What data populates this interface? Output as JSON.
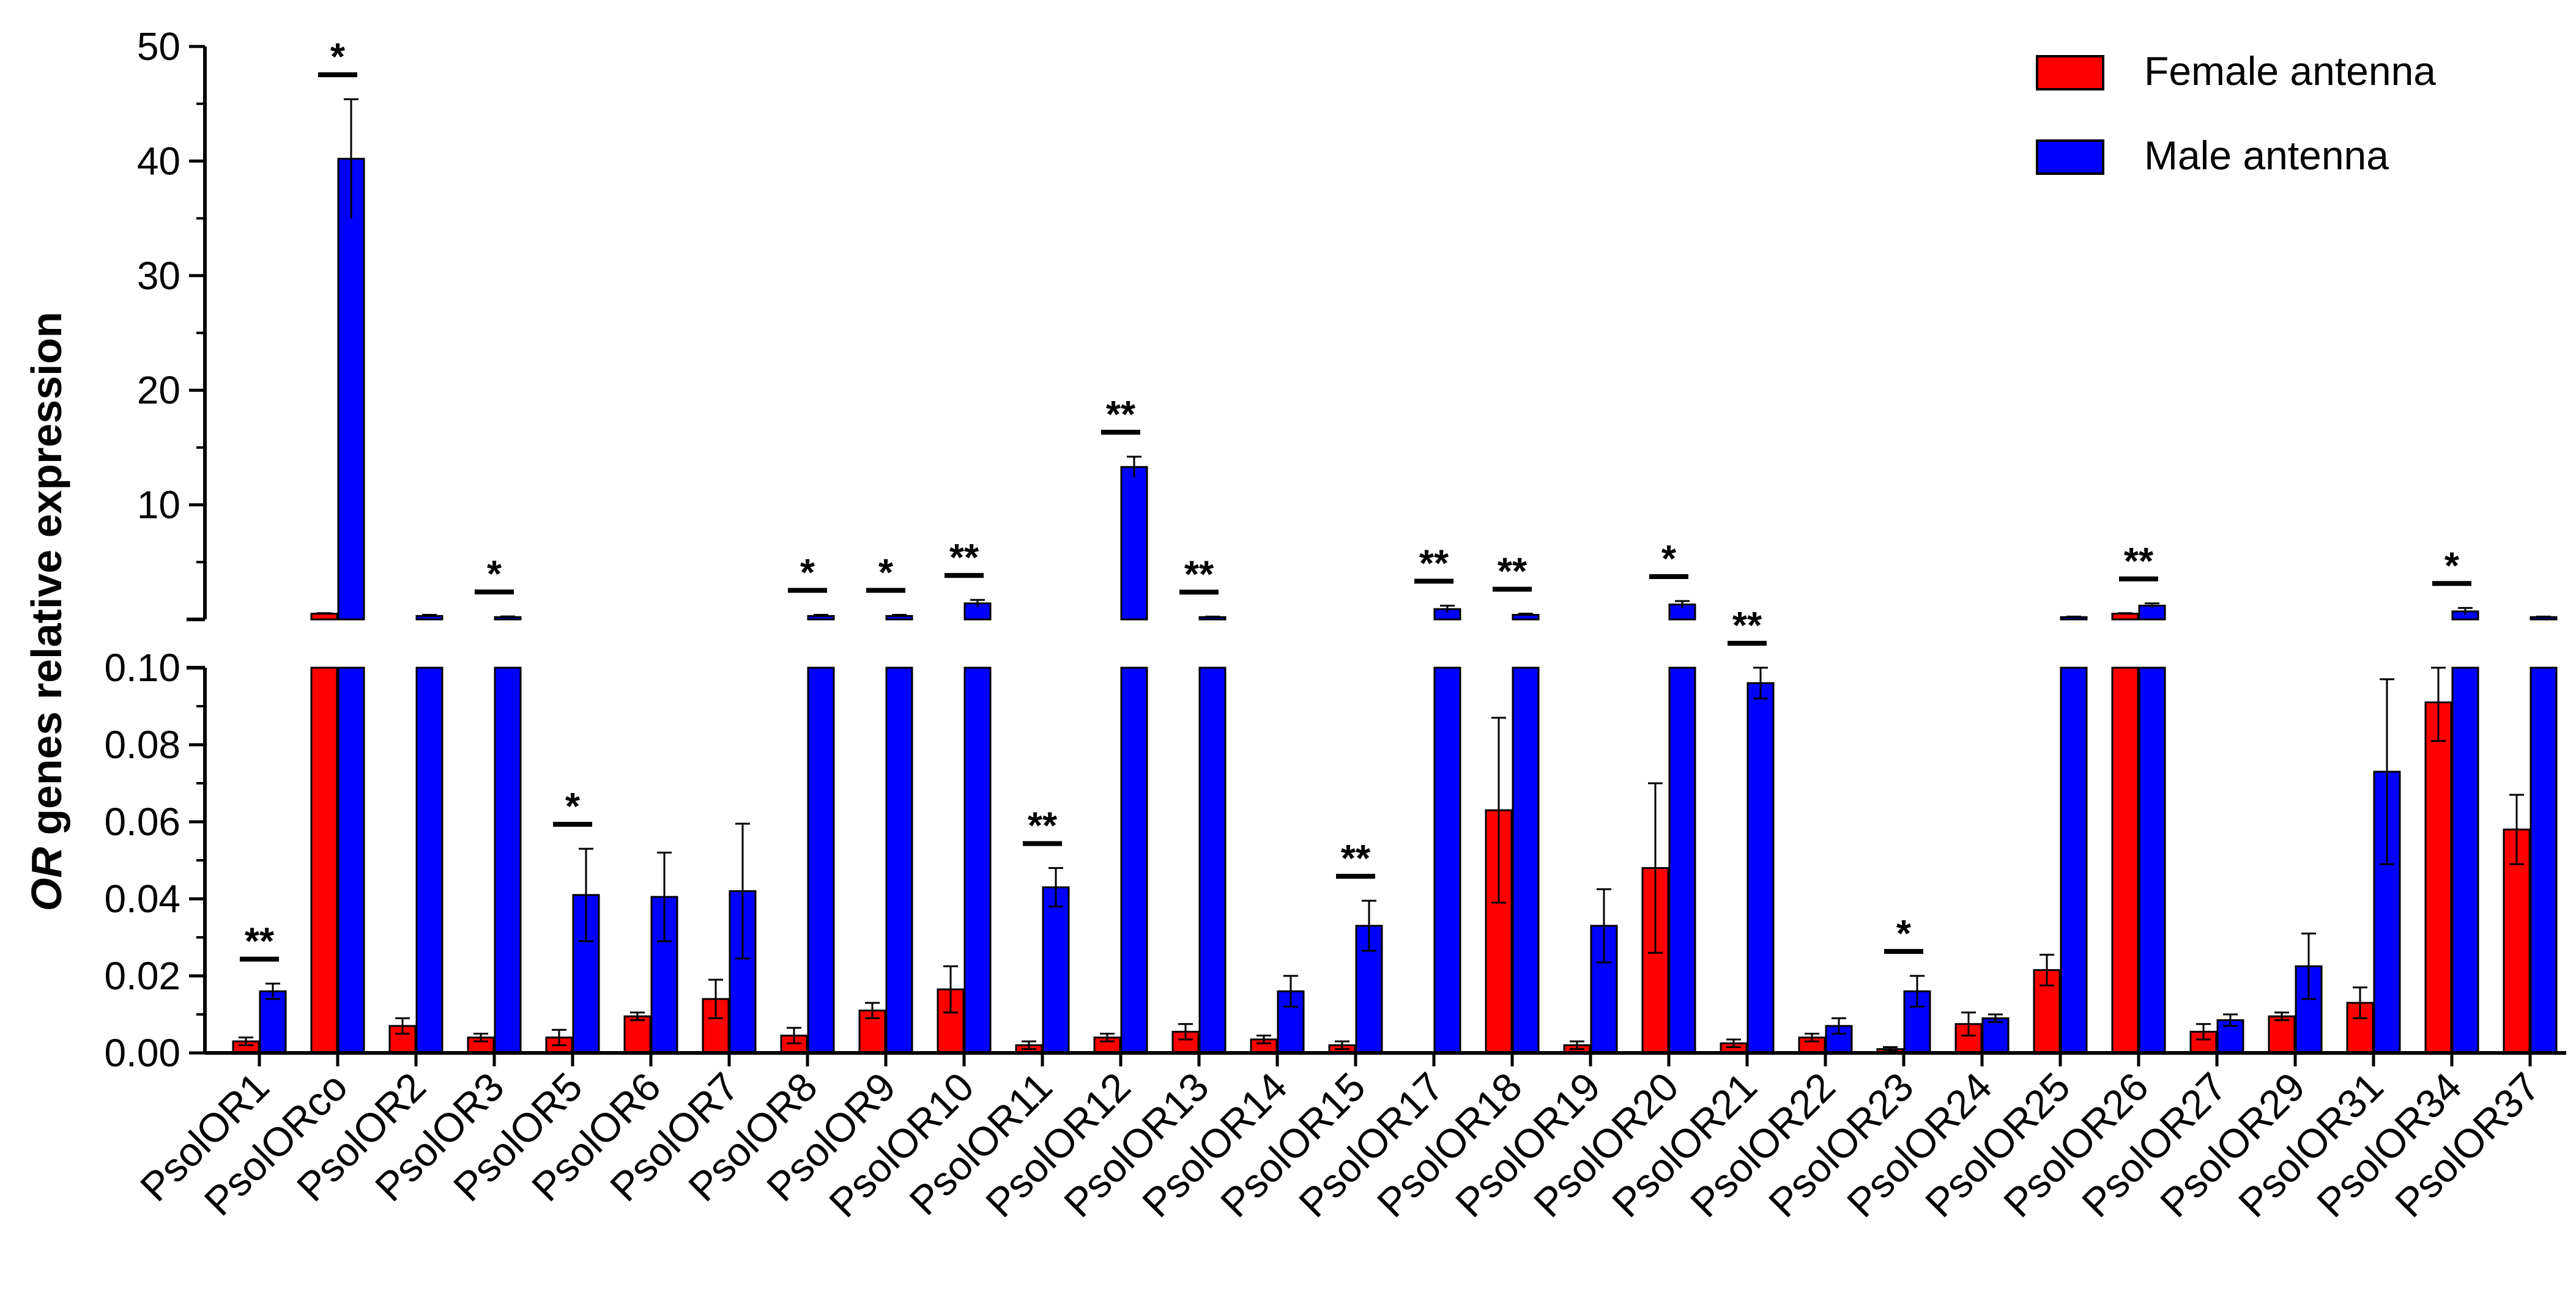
{
  "chart_data": {
    "type": "bar",
    "ylabel_emphasis": "OR",
    "ylabel_rest": " genes relative expression",
    "axis_break": true,
    "ylim_lower": [
      0,
      0.1
    ],
    "ylim_upper": [
      0,
      50
    ],
    "yticks_lower": [
      "0.00",
      "0.02",
      "0.04",
      "0.06",
      "0.08",
      "0.10"
    ],
    "yticks_upper": [
      "10",
      "20",
      "30",
      "40",
      "50"
    ],
    "legend_position": "top-right",
    "categories": [
      "PsolOR1",
      "PsolORco",
      "PsolOR2",
      "PsolOR3",
      "PsolOR5",
      "PsolOR6",
      "PsolOR7",
      "PsolOR8",
      "PsolOR9",
      "PsolOR10",
      "PsolOR11",
      "PsolOR12",
      "PsolOR13",
      "PsolOR14",
      "PsolOR15",
      "PsolOR17",
      "PsolOR18",
      "PsolOR19",
      "PsolOR20",
      "PsolOR21",
      "PsolOR22",
      "PsolOR23",
      "PsolOR24",
      "PsolOR25",
      "PsolOR26",
      "PsolOR27",
      "PsolOR29",
      "PsolOR31",
      "PsolOR34",
      "PsolOR37"
    ],
    "series": [
      {
        "name": "Female antenna",
        "color": "#ff0000",
        "values": [
          0.003,
          0.5,
          0.007,
          0.004,
          0.004,
          0.0095,
          0.014,
          0.0045,
          0.011,
          0.0165,
          0.002,
          0.004,
          0.0055,
          0.0035,
          0.002,
          0,
          0.063,
          0.002,
          0.048,
          0.0025,
          0.004,
          0.001,
          0.0075,
          0.0215,
          0.5,
          0.0055,
          0.0095,
          0.013,
          0.091,
          0.058
        ],
        "errors": [
          0.001,
          0.05,
          0.002,
          0.001,
          0.002,
          0.001,
          0.005,
          0.002,
          0.002,
          0.006,
          0.001,
          0.001,
          0.002,
          0.001,
          0.001,
          0,
          0.024,
          0.001,
          0.022,
          0.001,
          0.001,
          0.0005,
          0.003,
          0.004,
          0.05,
          0.002,
          0.001,
          0.004,
          0.01,
          0.009
        ]
      },
      {
        "name": "Male antenna",
        "color": "#0000ff",
        "values": [
          0.016,
          40.2,
          0.3,
          0.2,
          0.041,
          0.0405,
          0.042,
          0.3,
          0.3,
          1.4,
          0.043,
          13.3,
          0.2,
          0.016,
          0.033,
          0.9,
          0.4,
          0.033,
          1.3,
          0.096,
          0.007,
          0.016,
          0.009,
          0.2,
          1.2,
          0.0085,
          0.0225,
          0.073,
          0.7,
          0.2
        ],
        "errors": [
          0.002,
          5.2,
          0.1,
          0.06,
          0.012,
          0.0115,
          0.0175,
          0.1,
          0.1,
          0.3,
          0.005,
          0.9,
          0.05,
          0.004,
          0.0065,
          0.3,
          0.1,
          0.0095,
          0.3,
          0.004,
          0.002,
          0.004,
          0.001,
          0.05,
          0.2,
          0.0015,
          0.0085,
          0.024,
          0.3,
          0.05
        ]
      }
    ],
    "significance": [
      {
        "index": 0,
        "label": "**"
      },
      {
        "index": 1,
        "label": "*"
      },
      {
        "index": 3,
        "label": "*"
      },
      {
        "index": 4,
        "label": "*"
      },
      {
        "index": 7,
        "label": "*"
      },
      {
        "index": 8,
        "label": "*"
      },
      {
        "index": 9,
        "label": "**"
      },
      {
        "index": 10,
        "label": "**"
      },
      {
        "index": 11,
        "label": "**"
      },
      {
        "index": 12,
        "label": "**"
      },
      {
        "index": 14,
        "label": "**"
      },
      {
        "index": 15,
        "label": "**"
      },
      {
        "index": 16,
        "label": "**"
      },
      {
        "index": 18,
        "label": "*"
      },
      {
        "index": 19,
        "label": "**"
      },
      {
        "index": 21,
        "label": "*"
      },
      {
        "index": 24,
        "label": "**"
      },
      {
        "index": 28,
        "label": "*"
      }
    ]
  }
}
